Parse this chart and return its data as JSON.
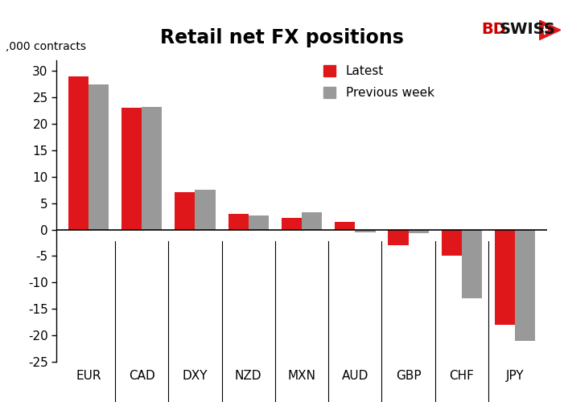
{
  "title": "Retail net FX positions",
  "ylabel": ",000 contracts",
  "categories": [
    "EUR",
    "CAD",
    "DXY",
    "NZD",
    "MXN",
    "AUD",
    "GBP",
    "CHF",
    "JPY"
  ],
  "latest": [
    29.0,
    23.0,
    7.0,
    3.0,
    2.2,
    1.5,
    -3.0,
    -5.0,
    -18.0
  ],
  "previous_week": [
    27.5,
    23.2,
    7.5,
    2.7,
    3.2,
    -0.5,
    -0.7,
    -13.0,
    -21.0
  ],
  "bar_color_latest": "#e0171a",
  "bar_color_prev": "#999999",
  "legend_latest": "Latest",
  "legend_prev": "Previous week",
  "ylim": [
    -25,
    32
  ],
  "yticks": [
    -25,
    -20,
    -15,
    -10,
    -5,
    0,
    5,
    10,
    15,
    20,
    25,
    30
  ],
  "background_color": "#ffffff",
  "title_fontsize": 17,
  "tick_fontsize": 11,
  "ylabel_fontsize": 10
}
